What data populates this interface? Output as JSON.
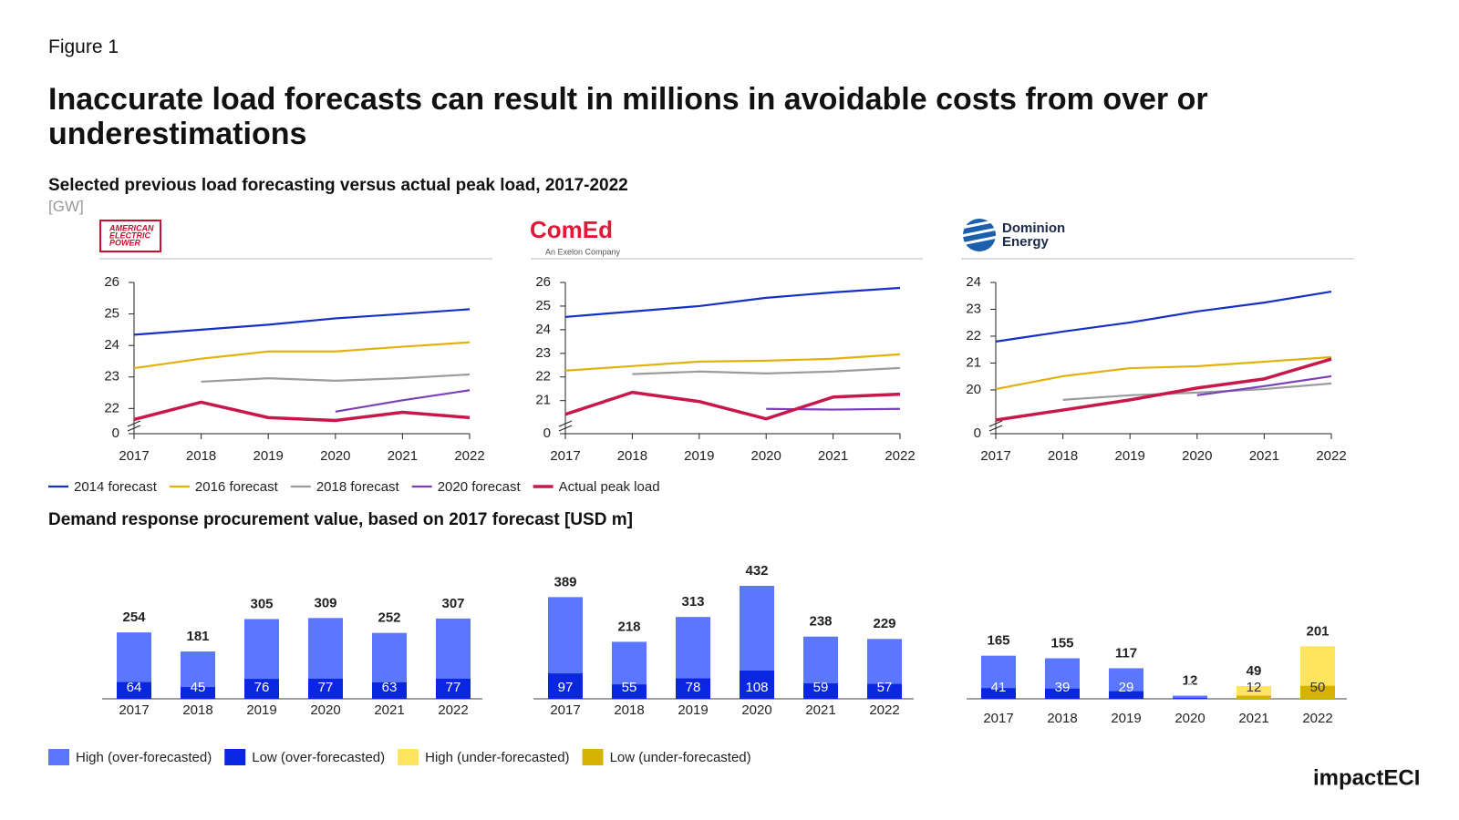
{
  "figure_label": "Figure 1",
  "title": "Inaccurate load forecasts can result in millions in avoidable costs from over or underestimations",
  "subtitle": "Selected previous load forecasting versus actual peak load, 2017-2022",
  "unit": "[GW]",
  "subtitle2": "Demand response procurement value, based on 2017 forecast [USD m]",
  "logos": {
    "aep": [
      "AMERICAN",
      "ELECTRIC",
      "POWER"
    ],
    "comed": "ComEd",
    "comed_tagline": "An Exelon Company",
    "dominion": [
      "Dominion",
      "Energy"
    ]
  },
  "footer": "impactECI",
  "chart_data": [
    {
      "type": "line",
      "x": [
        2017,
        2018,
        2019,
        2020,
        2021,
        2022
      ],
      "xlim": [
        2017,
        2022
      ],
      "xticks": [
        2017,
        2018,
        2019,
        2020,
        2021,
        2022
      ],
      "ylim": [
        21.2,
        26
      ],
      "yticks": [
        0,
        22,
        23,
        24,
        25,
        26
      ],
      "axis_break": true,
      "series": [
        {
          "name": "2014 forecast",
          "color": "#1530c4",
          "values": [
            24.34,
            24.5,
            24.66,
            24.86,
            25.0,
            25.15
          ]
        },
        {
          "name": "2016 forecast",
          "color": "#e1b20c",
          "values": [
            23.28,
            23.58,
            23.81,
            23.81,
            23.96,
            24.1
          ]
        },
        {
          "name": "2018 forecast",
          "color": "#9b9b9b",
          "values": [
            null,
            22.85,
            22.96,
            22.88,
            22.96,
            23.08
          ]
        },
        {
          "name": "2020 forecast",
          "color": "#7b3fb8",
          "values": [
            null,
            null,
            null,
            21.9,
            22.26,
            22.58
          ]
        },
        {
          "name": "Actual peak load",
          "color": "#c8174a",
          "values": [
            21.65,
            22.2,
            21.71,
            21.62,
            21.88,
            21.71
          ]
        }
      ]
    },
    {
      "type": "line",
      "x": [
        2017,
        2018,
        2019,
        2020,
        2021,
        2022
      ],
      "xlim": [
        2017,
        2022
      ],
      "xticks": [
        2017,
        2018,
        2019,
        2020,
        2021,
        2022
      ],
      "ylim": [
        19.6,
        26
      ],
      "yticks": [
        0,
        21,
        22,
        23,
        24,
        25,
        26
      ],
      "axis_break": true,
      "series": [
        {
          "name": "2014 forecast",
          "color": "#1530c4",
          "values": [
            24.54,
            24.77,
            25.0,
            25.35,
            25.58,
            25.77
          ]
        },
        {
          "name": "2016 forecast",
          "color": "#e1b20c",
          "values": [
            22.27,
            22.46,
            22.65,
            22.69,
            22.77,
            22.96
          ]
        },
        {
          "name": "2018 forecast",
          "color": "#9b9b9b",
          "values": [
            null,
            22.12,
            22.23,
            22.15,
            22.23,
            22.38
          ]
        },
        {
          "name": "2020 forecast",
          "color": "#7b3fb8",
          "values": [
            null,
            null,
            null,
            20.65,
            20.62,
            20.65
          ]
        },
        {
          "name": "Actual peak load",
          "color": "#c8174a",
          "values": [
            20.42,
            21.35,
            20.96,
            20.23,
            21.15,
            21.27
          ]
        }
      ]
    },
    {
      "type": "line",
      "x": [
        2017,
        2018,
        2019,
        2020,
        2021,
        2022
      ],
      "xlim": [
        2017,
        2022
      ],
      "xticks": [
        2017,
        2018,
        2019,
        2020,
        2021,
        2022
      ],
      "ylim": [
        18.37,
        24
      ],
      "yticks": [
        0,
        20,
        21,
        22,
        23,
        24
      ],
      "axis_break": true,
      "series": [
        {
          "name": "2014 forecast",
          "color": "#1530c4",
          "values": [
            21.8,
            22.17,
            22.51,
            22.92,
            23.25,
            23.66
          ]
        },
        {
          "name": "2016 forecast",
          "color": "#e1b20c",
          "values": [
            20.03,
            20.51,
            20.81,
            20.88,
            21.05,
            21.22
          ]
        },
        {
          "name": "2018 forecast",
          "color": "#9b9b9b",
          "values": [
            null,
            19.63,
            19.8,
            19.9,
            20.03,
            20.24
          ]
        },
        {
          "name": "2020 forecast",
          "color": "#7b3fb8",
          "values": [
            null,
            null,
            null,
            19.8,
            20.14,
            20.51
          ]
        },
        {
          "name": "Actual peak load",
          "color": "#c8174a",
          "values": [
            18.88,
            19.25,
            19.63,
            20.07,
            20.41,
            21.15
          ]
        }
      ]
    },
    {
      "type": "bar",
      "categories": [
        "2017",
        "2018",
        "2019",
        "2020",
        "2021",
        "2022"
      ],
      "series": [
        {
          "name": "High (over-forecasted)",
          "color": "#5b76ff",
          "values": [
            254,
            181,
            305,
            309,
            252,
            307
          ]
        },
        {
          "name": "Low (over-forecasted)",
          "color": "#0a26e0",
          "values": [
            64,
            45,
            76,
            77,
            63,
            77
          ]
        }
      ]
    },
    {
      "type": "bar",
      "categories": [
        "2017",
        "2018",
        "2019",
        "2020",
        "2021",
        "2022"
      ],
      "series": [
        {
          "name": "High (over-forecasted)",
          "color": "#5b76ff",
          "values": [
            389,
            218,
            313,
            432,
            238,
            229
          ]
        },
        {
          "name": "Low (over-forecasted)",
          "color": "#0a26e0",
          "values": [
            97,
            55,
            78,
            108,
            59,
            57
          ]
        }
      ]
    },
    {
      "type": "bar",
      "categories": [
        "2017",
        "2018",
        "2019",
        "2020",
        "2021",
        "2022"
      ],
      "series": [
        {
          "name": "High (over-forecasted)",
          "color": "#5b76ff",
          "values": [
            165,
            155,
            117,
            12,
            null,
            null
          ]
        },
        {
          "name": "Low (over-forecasted)",
          "color": "#0a26e0",
          "values": [
            41,
            39,
            29,
            3,
            null,
            null
          ]
        },
        {
          "name": "High (under-forecasted)",
          "color": "#ffe55e",
          "values": [
            null,
            null,
            null,
            null,
            49,
            201
          ]
        },
        {
          "name": "Low (under-forecasted)",
          "color": "#d6b300",
          "values": [
            null,
            null,
            null,
            null,
            12,
            50
          ]
        }
      ]
    }
  ]
}
